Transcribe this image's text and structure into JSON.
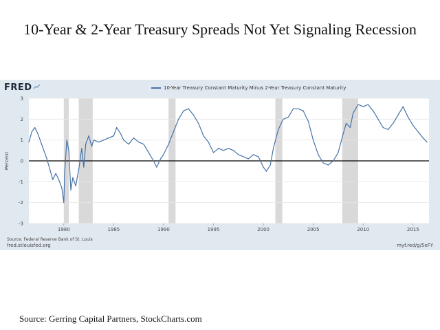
{
  "headline": "10-Year & 2-Year Treasury Spreads Not Yet Signaling Recession",
  "fred": {
    "logo": "FRED",
    "source": "Source: Federal Reserve Bank of St. Louis",
    "url_left": "fred.stlouisfed.org",
    "url_right": "myf.red/g/5eFY"
  },
  "footer": "Source: Gerring Capital Partners, StockCharts.com",
  "colors": {
    "line": "#4572a7",
    "recession": "#d9d9d9",
    "panel": "#e1e9f0"
  },
  "chart_data": {
    "type": "line",
    "ylabel": "Percent",
    "xlabel": "",
    "xlim": [
      1976.5,
      2016.6
    ],
    "ylim": [
      -3,
      3
    ],
    "x_ticks": [
      "1980",
      "1985",
      "1990",
      "1995",
      "2000",
      "2005",
      "2010",
      "2015"
    ],
    "y_ticks": [
      "3",
      "2",
      "1",
      "0",
      "-1",
      "-2",
      "-3"
    ],
    "grid": true,
    "legend": "top-center",
    "recessions": [
      [
        1980.0,
        1980.5
      ],
      [
        1981.5,
        1982.9
      ],
      [
        1990.5,
        1991.2
      ],
      [
        2001.2,
        2001.9
      ],
      [
        2007.9,
        2009.5
      ]
    ],
    "series": [
      {
        "name": "10-Year Treasury Constant Maturity Minus 2-Year Treasury Constant Maturity",
        "x": [
          1976.5,
          1976.8,
          1977.1,
          1977.4,
          1977.7,
          1978.0,
          1978.3,
          1978.6,
          1978.9,
          1979.2,
          1979.5,
          1979.8,
          1980.0,
          1980.1,
          1980.3,
          1980.5,
          1980.7,
          1980.9,
          1981.2,
          1981.5,
          1981.8,
          1982.0,
          1982.2,
          1982.5,
          1982.8,
          1983.0,
          1983.5,
          1984.0,
          1984.5,
          1985.0,
          1985.3,
          1985.7,
          1986.0,
          1986.5,
          1987.0,
          1987.5,
          1988.0,
          1988.5,
          1989.0,
          1989.3,
          1989.7,
          1990.0,
          1990.5,
          1991.0,
          1991.5,
          1992.0,
          1992.5,
          1993.0,
          1993.5,
          1994.0,
          1994.5,
          1995.0,
          1995.5,
          1996.0,
          1996.5,
          1997.0,
          1997.5,
          1998.0,
          1998.5,
          1999.0,
          1999.5,
          2000.0,
          2000.3,
          2000.7,
          2001.0,
          2001.5,
          2002.0,
          2002.5,
          2003.0,
          2003.5,
          2004.0,
          2004.5,
          2005.0,
          2005.5,
          2006.0,
          2006.5,
          2007.0,
          2007.5,
          2008.0,
          2008.3,
          2008.7,
          2009.0,
          2009.5,
          2010.0,
          2010.5,
          2011.0,
          2011.5,
          2012.0,
          2012.5,
          2013.0,
          2013.5,
          2014.0,
          2014.5,
          2015.0,
          2015.5,
          2016.0,
          2016.4
        ],
        "values": [
          0.9,
          1.4,
          1.6,
          1.3,
          0.9,
          0.5,
          0.1,
          -0.4,
          -0.9,
          -0.6,
          -0.9,
          -1.3,
          -2.0,
          -0.5,
          1.0,
          0.5,
          -1.4,
          -0.8,
          -1.2,
          -0.4,
          0.6,
          -0.3,
          0.8,
          1.2,
          0.7,
          1.0,
          0.9,
          1.0,
          1.1,
          1.2,
          1.6,
          1.3,
          1.0,
          0.8,
          1.1,
          0.9,
          0.8,
          0.4,
          0.0,
          -0.3,
          0.1,
          0.3,
          0.8,
          1.4,
          2.0,
          2.4,
          2.5,
          2.2,
          1.8,
          1.2,
          0.9,
          0.4,
          0.6,
          0.5,
          0.6,
          0.5,
          0.3,
          0.2,
          0.1,
          0.3,
          0.2,
          -0.3,
          -0.5,
          -0.2,
          0.6,
          1.5,
          2.0,
          2.1,
          2.5,
          2.5,
          2.4,
          1.9,
          1.0,
          0.3,
          -0.1,
          -0.2,
          0.0,
          0.4,
          1.3,
          1.8,
          1.6,
          2.3,
          2.7,
          2.6,
          2.7,
          2.4,
          2.0,
          1.6,
          1.5,
          1.8,
          2.2,
          2.6,
          2.1,
          1.7,
          1.4,
          1.1,
          0.9
        ]
      }
    ]
  }
}
